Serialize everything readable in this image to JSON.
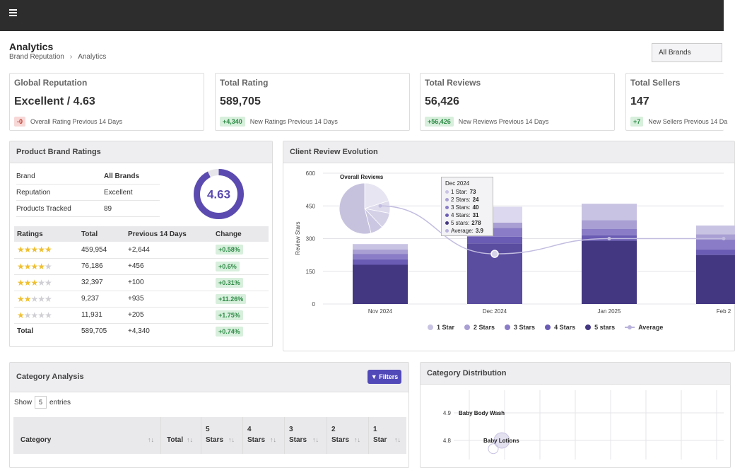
{
  "header": {
    "menu_icon": "hamburger-icon"
  },
  "page": {
    "title": "Analytics",
    "breadcrumb": [
      "Brand Reputation",
      "Analytics"
    ],
    "breadcrumb_sep": "›",
    "brand_select": "All Brands"
  },
  "kpis": [
    {
      "title": "Global Reputation",
      "value": "Excellent / 4.63",
      "delta": "-0",
      "delta_type": "red",
      "note": "Overall Rating Previous 14 Days"
    },
    {
      "title": "Total Rating",
      "value": "589,705",
      "delta": "+4,340",
      "delta_type": "green",
      "note": "New Ratings Previous 14 Days"
    },
    {
      "title": "Total Reviews",
      "value": "56,426",
      "delta": "+56,426",
      "delta_type": "green",
      "note": "New Reviews Previous 14 Days"
    },
    {
      "title": "Total Sellers",
      "value": "147",
      "delta": "+7",
      "delta_type": "green",
      "note": "New Sellers Previous 14 Da"
    }
  ],
  "brand_ratings": {
    "title": "Product Brand Ratings",
    "info": [
      {
        "k": "Brand",
        "v": "All Brands"
      },
      {
        "k": "Reputation",
        "v": "Excellent"
      },
      {
        "k": "Products Tracked",
        "v": "89"
      }
    ],
    "score": "4.63",
    "score_fraction": 0.926,
    "headers": [
      "Ratings",
      "Total",
      "Previous 14 Days",
      "Change"
    ],
    "rows": [
      {
        "stars": 5,
        "total": "459,954",
        "prev": "+2,644",
        "change": "+0.58%"
      },
      {
        "stars": 4,
        "total": "76,186",
        "prev": "+456",
        "change": "+0.6%"
      },
      {
        "stars": 3,
        "total": "32,397",
        "prev": "+100",
        "change": "+0.31%"
      },
      {
        "stars": 2,
        "total": "9,237",
        "prev": "+935",
        "change": "+11.26%"
      },
      {
        "stars": 1,
        "total": "11,931",
        "prev": "+205",
        "change": "+1.75%"
      }
    ],
    "total_row": {
      "label": "Total",
      "total": "589,705",
      "prev": "+4,340",
      "change": "+0.74%"
    }
  },
  "review_chart": {
    "title": "Client Review Evolution",
    "inset_title": "Overall Reviews",
    "tooltip": {
      "title": "Dec 2024",
      "rows": [
        {
          "label": "1 Star:",
          "value": "73"
        },
        {
          "label": "2 Stars:",
          "value": "24"
        },
        {
          "label": "3 Stars:",
          "value": "40"
        },
        {
          "label": "4 Stars:",
          "value": "31"
        },
        {
          "label": "5 stars:",
          "value": "278"
        },
        {
          "label": "Average:",
          "value": "3.9"
        }
      ]
    },
    "legend": [
      {
        "name": "1 Star",
        "color": "#c9c3e3"
      },
      {
        "name": "2 Stars",
        "color": "#a99fd3"
      },
      {
        "name": "3 Stars",
        "color": "#8a7cc6"
      },
      {
        "name": "4 Stars",
        "color": "#6a5bb4"
      },
      {
        "name": "5 stars",
        "color": "#433782"
      },
      {
        "name": "Average",
        "color": "#b9b3dc"
      }
    ]
  },
  "chart_data": {
    "type": "bar",
    "stacked": true,
    "ylabel": "Review Stars",
    "ylim": [
      0,
      600
    ],
    "yticks": [
      "0",
      "150",
      "300",
      "450",
      "600"
    ],
    "categories": [
      "Nov 2024",
      "Dec 2024",
      "Jan 2025",
      "Feb 2"
    ],
    "series": [
      {
        "name": "5 stars",
        "values": [
          180,
          278,
          290,
          225
        ]
      },
      {
        "name": "4 Stars",
        "values": [
          25,
          31,
          25,
          25
        ]
      },
      {
        "name": "3 Stars",
        "values": [
          25,
          40,
          30,
          45
        ]
      },
      {
        "name": "2 Stars",
        "values": [
          20,
          24,
          40,
          25
        ]
      },
      {
        "name": "1 Star",
        "values": [
          25,
          73,
          75,
          40
        ]
      }
    ],
    "average": [
      450,
      230,
      300,
      300
    ],
    "pie": [
      {
        "name": "1 Star",
        "value": 20
      },
      {
        "name": "2 Stars",
        "value": 8
      },
      {
        "name": "3 Stars",
        "value": 10
      },
      {
        "name": "4 Stars",
        "value": 8
      },
      {
        "name": "5 stars",
        "value": 54
      }
    ]
  },
  "category_analysis": {
    "title": "Category Analysis",
    "filters_label": "Filters",
    "show": "Show",
    "entries_count": "5",
    "entries": "entries",
    "columns": [
      {
        "l1": "Category",
        "l2": ""
      },
      {
        "l1": "Total",
        "l2": ""
      },
      {
        "l1": "5",
        "l2": "Stars"
      },
      {
        "l1": "4",
        "l2": "Stars"
      },
      {
        "l1": "3",
        "l2": "Stars"
      },
      {
        "l1": "2",
        "l2": "Stars"
      },
      {
        "l1": "1",
        "l2": "Star"
      }
    ]
  },
  "category_distribution": {
    "title": "Category Distribution",
    "yticks": [
      "4.9",
      "4.8"
    ],
    "points": [
      {
        "label": "Baby Body Wash",
        "y": 4.9
      },
      {
        "label": "Baby Lotions",
        "y": 4.8
      }
    ]
  }
}
